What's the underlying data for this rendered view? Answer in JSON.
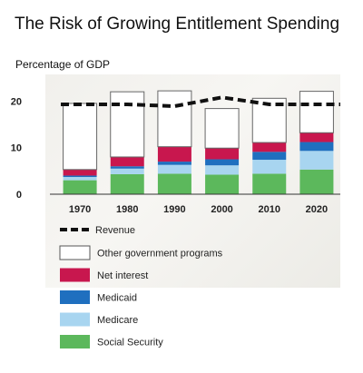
{
  "title": "The Risk of Growing Entitlement Spending",
  "subtitle": "Percentage of GDP",
  "chart_data": {
    "type": "bar",
    "stacked": true,
    "categories": [
      "1970",
      "1980",
      "1990",
      "2000",
      "2010",
      "2020"
    ],
    "series": [
      {
        "name": "Social Security",
        "color": "#5cb85c",
        "values": [
          3.0,
          4.3,
          4.4,
          4.2,
          4.4,
          5.3
        ]
      },
      {
        "name": "Medicare",
        "color": "#a8d5f0",
        "values": [
          0.7,
          1.2,
          1.9,
          2.0,
          3.0,
          4.0
        ]
      },
      {
        "name": "Medicaid",
        "color": "#1f6fbf",
        "values": [
          0.3,
          0.5,
          0.7,
          1.3,
          1.7,
          1.9
        ]
      },
      {
        "name": "Net interest",
        "color": "#c8174e",
        "values": [
          1.3,
          2.0,
          3.2,
          2.4,
          2.0,
          2.0
        ]
      },
      {
        "name": "Other government programs",
        "color": "#ffffff",
        "values": [
          14.2,
          14.0,
          12.0,
          8.5,
          9.5,
          8.9
        ]
      }
    ],
    "revenue": {
      "name": "Revenue",
      "values": [
        19.3,
        19.3,
        18.9,
        20.8,
        19.3,
        19.3
      ]
    },
    "ylim": [
      0,
      23
    ],
    "yticks": [
      0,
      10,
      20
    ],
    "legend_position": "bottom"
  }
}
